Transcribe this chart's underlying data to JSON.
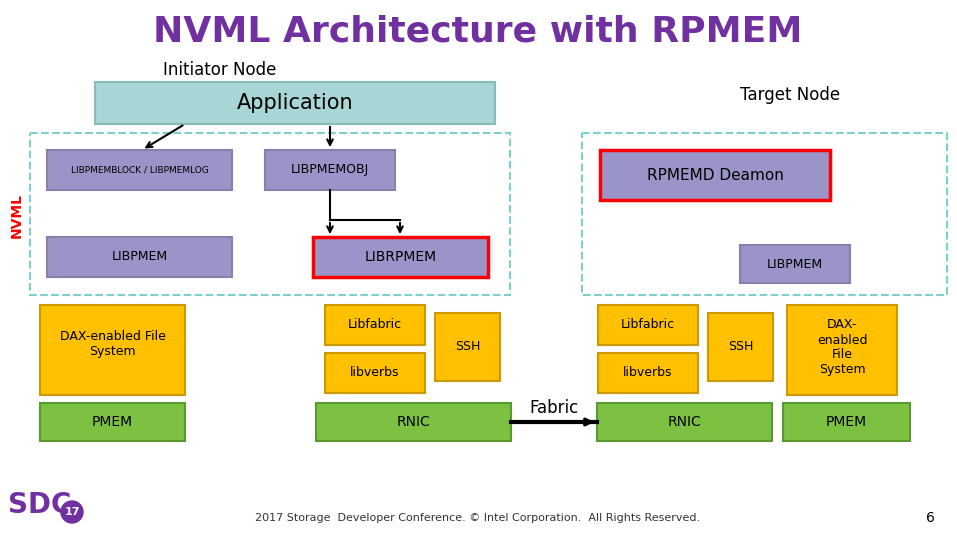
{
  "title": "NVML Architecture with RPMEM",
  "title_color": "#7030A0",
  "title_fontsize": 26,
  "bg_color": "#FFFFFF",
  "colors": {
    "app_box": "#A8D5D5",
    "purple_box": "#9B94C8",
    "purple_box_edge": "#8880AA",
    "orange_box": "#FFC000",
    "orange_box_edge": "#CC9900",
    "green_box": "#7DC142",
    "green_box_edge": "#5A9930",
    "dashed_border": "#7FCFCF",
    "nvml_label": "#FF0000",
    "red_border": "#FF0000",
    "arrow": "#000000"
  },
  "footer_text": "2017 Storage  Developer Conference. © Intel Corporation.  All Rights Reserved.",
  "footer_color": "#333333",
  "page_num": "6"
}
